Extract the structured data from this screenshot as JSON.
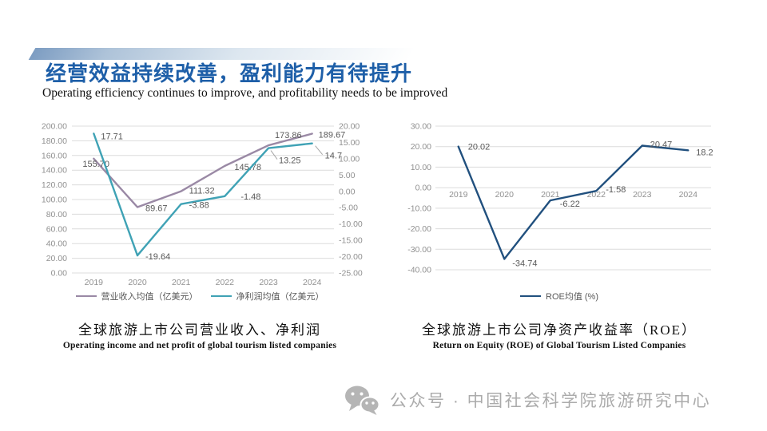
{
  "slide": {
    "title": "经营效益持续改善，盈利能力有待提升",
    "subtitle": "Operating efficiency continues to improve, and profitability needs to be improved"
  },
  "chart_data": [
    {
      "type": "line",
      "title": "全球旅游上市公司营业收入、净利润",
      "categories": [
        "2019",
        "2020",
        "2021",
        "2022",
        "2023",
        "2024"
      ],
      "axes": {
        "left": {
          "min": 0,
          "max": 200,
          "step": 20,
          "tick_labels": [
            "200.00",
            "180.00",
            "160.00",
            "140.00",
            "120.00",
            "100.00",
            "80.00",
            "60.00",
            "40.00",
            "20.00",
            "0.00"
          ]
        },
        "right": {
          "min": -25,
          "max": 20,
          "step": 5,
          "tick_labels": [
            "20.00",
            "15.00",
            "10.00",
            "5.00",
            "0.00",
            "-5.00",
            "-10.00",
            "-15.00",
            "-20.00",
            "-25.00"
          ]
        }
      },
      "series": [
        {
          "name": "营业收入均值（亿美元）",
          "axis": "left",
          "color": "#9a89a5",
          "values": [
            155.7,
            89.67,
            111.32,
            145.78,
            173.86,
            189.67
          ],
          "point_labels": [
            "155.70",
            "89.67",
            "111.32",
            "145.78",
            "173.86",
            "189.67"
          ]
        },
        {
          "name": "净利润均值（亿美元）",
          "axis": "right",
          "color": "#3fa2b5",
          "values": [
            17.71,
            -19.64,
            -3.88,
            -1.48,
            13.25,
            14.7
          ],
          "point_labels": [
            "17.71",
            "-19.64",
            "-3.88",
            "-1.48",
            "13.25",
            "14.7"
          ]
        }
      ],
      "legend_position": "bottom",
      "grid": true
    },
    {
      "type": "line",
      "title": "全球旅游上市公司净资产收益率（ROE）",
      "categories": [
        "2019",
        "2020",
        "2021",
        "2022",
        "2023",
        "2024"
      ],
      "axes": {
        "left": {
          "min": -40,
          "max": 30,
          "step": 10,
          "tick_labels": [
            "30.00",
            "20.00",
            "10.00",
            "0.00",
            "-10.00",
            "-20.00",
            "-30.00",
            "-40.00"
          ]
        }
      },
      "series": [
        {
          "name": "ROE均值 (%)",
          "axis": "left",
          "color": "#21507e",
          "values": [
            20.02,
            -34.74,
            -6.22,
            -1.58,
            20.47,
            18.2
          ],
          "point_labels": [
            "20.02",
            "-34.74",
            "-6.22",
            "-1.58",
            "20.47",
            "18.2"
          ]
        }
      ],
      "legend_position": "bottom",
      "grid": true
    }
  ],
  "captions": {
    "left": {
      "zh": "全球旅游上市公司营业收入、净利润",
      "en": "Operating income and net profit of global tourism listed companies"
    },
    "right": {
      "zh": "全球旅游上市公司净资产收益率（ROE）",
      "en": "Return on Equity (ROE) of Global Tourism Listed Companies"
    }
  },
  "watermark": {
    "icon": "wechat-icon",
    "text": "公众号 · 中国社会科学院旅游研究中心"
  },
  "colors": {
    "title_blue": "#1e5fa8",
    "revenue_line": "#9a89a5",
    "net_profit_line": "#3fa2b5",
    "roe_line": "#21507e",
    "gridline": "#dcdcdc",
    "tick_text": "#909090",
    "data_label_text": "#595959",
    "watermark_gray": "#ababab",
    "accent_bar": "#7d9dc2"
  }
}
